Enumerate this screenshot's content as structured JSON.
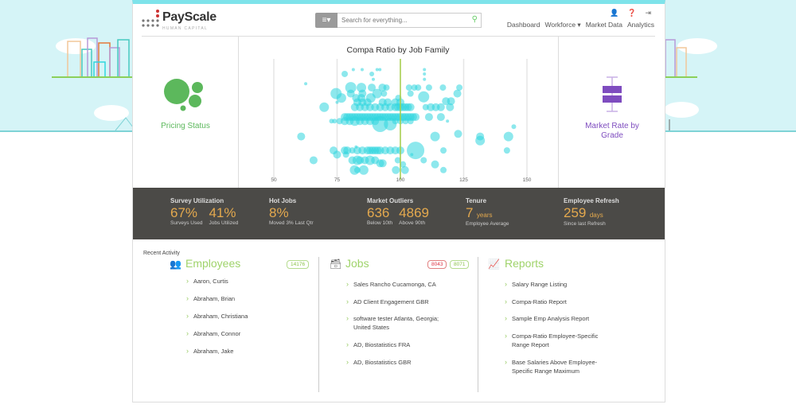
{
  "header": {
    "brand": "PayScale",
    "brand_sub": "HUMAN CAPITAL",
    "search_placeholder": "Search for everything...",
    "nav": [
      "Dashboard",
      "Workforce ▾",
      "Market Data",
      "Analytics"
    ]
  },
  "tiles": {
    "left": "Pricing Status",
    "right": "Market Rate by Grade"
  },
  "colors": {
    "bubble": "#2fd6de",
    "ref_line": "#a6d04a",
    "pricing": "#5cb85c",
    "market": "#7e4cbf"
  },
  "chart_data": {
    "type": "scatter",
    "title": "Compa Ratio by Job Family",
    "xlim": [
      50,
      150
    ],
    "xticks": [
      50,
      75,
      100,
      125,
      150
    ],
    "reference_x": 100,
    "ylim": [
      0,
      100
    ],
    "points": [
      [
        81.4,
        96,
        2
      ],
      [
        84.9,
        96,
        2
      ],
      [
        90.8,
        96,
        2
      ],
      [
        91.9,
        96,
        2
      ],
      [
        109.5,
        96,
        2
      ],
      [
        78,
        92,
        4
      ],
      [
        88.7,
        92,
        3
      ],
      [
        109.5,
        92,
        2
      ],
      [
        89.3,
        87,
        2
      ],
      [
        109.5,
        87,
        2
      ],
      [
        62.6,
        83,
        2
      ],
      [
        80.4,
        79.5,
        7
      ],
      [
        84.6,
        79.5,
        6
      ],
      [
        88.7,
        79.5,
        5
      ],
      [
        92.9,
        79.5,
        5
      ],
      [
        94.5,
        79.5,
        4
      ],
      [
        103.4,
        79.5,
        4
      ],
      [
        105.5,
        79.5,
        4
      ],
      [
        107,
        79.5,
        4
      ],
      [
        111.3,
        79.5,
        4
      ],
      [
        116.8,
        79.5,
        4
      ],
      [
        123.3,
        79.5,
        4
      ],
      [
        74.6,
        74,
        7
      ],
      [
        80.4,
        74,
        5
      ],
      [
        85,
        74,
        5
      ],
      [
        90.8,
        74,
        6
      ],
      [
        93.5,
        74,
        4
      ],
      [
        104,
        74,
        4
      ],
      [
        122.5,
        74,
        5
      ],
      [
        109.2,
        71,
        7
      ],
      [
        76.7,
        70,
        6
      ],
      [
        82.5,
        70,
        5
      ],
      [
        84.6,
        70,
        5
      ],
      [
        88.3,
        70,
        6
      ],
      [
        99.2,
        70,
        4
      ],
      [
        120,
        67,
        5
      ],
      [
        118,
        67,
        5
      ],
      [
        83,
        66,
        5
      ],
      [
        85,
        66,
        5
      ],
      [
        87,
        66,
        5
      ],
      [
        93,
        66,
        5
      ],
      [
        95,
        66,
        5
      ],
      [
        98,
        66,
        5
      ],
      [
        100,
        66,
        5
      ],
      [
        75,
        66,
        2
      ],
      [
        69.9,
        61.5,
        6
      ],
      [
        82,
        61.5,
        5
      ],
      [
        84,
        61.5,
        5
      ],
      [
        86,
        61.5,
        5
      ],
      [
        88,
        61.5,
        5
      ],
      [
        90,
        61.5,
        5
      ],
      [
        92,
        61.5,
        5
      ],
      [
        94,
        61.5,
        5
      ],
      [
        96,
        61.5,
        5
      ],
      [
        98,
        61.5,
        5
      ],
      [
        99,
        61.5,
        5
      ],
      [
        100,
        61.5,
        5
      ],
      [
        101,
        61.5,
        5
      ],
      [
        102,
        61.5,
        5
      ],
      [
        103,
        61.5,
        5
      ],
      [
        104,
        61.5,
        5
      ],
      [
        110,
        61.5,
        4
      ],
      [
        112,
        61.5,
        5
      ],
      [
        114,
        61.5,
        5
      ],
      [
        116,
        61.5,
        5
      ],
      [
        119.6,
        61.5,
        5
      ],
      [
        78,
        52.5,
        5
      ],
      [
        79,
        52.5,
        5
      ],
      [
        80,
        52.5,
        5
      ],
      [
        81,
        52.5,
        5
      ],
      [
        82,
        52.5,
        5
      ],
      [
        83,
        52.5,
        5
      ],
      [
        84,
        52.5,
        5
      ],
      [
        85,
        52.5,
        5
      ],
      [
        86,
        52.5,
        5
      ],
      [
        87,
        52.5,
        5
      ],
      [
        88,
        52.5,
        5
      ],
      [
        89,
        52.5,
        5
      ],
      [
        90,
        52.5,
        5
      ],
      [
        91,
        52.5,
        5
      ],
      [
        92,
        52.5,
        5
      ],
      [
        93,
        52.5,
        5
      ],
      [
        94,
        52.5,
        5
      ],
      [
        95,
        52.5,
        5
      ],
      [
        96,
        52.5,
        5
      ],
      [
        97,
        52.5,
        5
      ],
      [
        98,
        52.5,
        5
      ],
      [
        99,
        52.5,
        5
      ],
      [
        100,
        52.5,
        5
      ],
      [
        101,
        52.5,
        5
      ],
      [
        102,
        52.5,
        5
      ],
      [
        103,
        52.5,
        5
      ],
      [
        104,
        52.5,
        5
      ],
      [
        105,
        52.5,
        5
      ],
      [
        106,
        52.5,
        5
      ],
      [
        111.3,
        52.5,
        5
      ],
      [
        116,
        52.5,
        5
      ],
      [
        72.8,
        48.7,
        3
      ],
      [
        74,
        48.7,
        3
      ],
      [
        76,
        48.7,
        4
      ],
      [
        78,
        48.7,
        5
      ],
      [
        80,
        48.7,
        5
      ],
      [
        82,
        48.7,
        6
      ],
      [
        84,
        48.7,
        5
      ],
      [
        86,
        48.7,
        5
      ],
      [
        88,
        48.7,
        5
      ],
      [
        90,
        48.7,
        5
      ],
      [
        92,
        46,
        10
      ],
      [
        96,
        46,
        8
      ],
      [
        98,
        48.7,
        4
      ],
      [
        100,
        48.7,
        4
      ],
      [
        102,
        48.7,
        4
      ],
      [
        104,
        48.7,
        4
      ],
      [
        118.6,
        48.7,
        2
      ],
      [
        144.8,
        43.6,
        3
      ],
      [
        60.8,
        34.6,
        5
      ],
      [
        113.7,
        34.6,
        6
      ],
      [
        122.8,
        37,
        5
      ],
      [
        131.5,
        34.6,
        5
      ],
      [
        142.7,
        34.6,
        6
      ],
      [
        131.5,
        30.8,
        6
      ],
      [
        73.6,
        21.8,
        5
      ],
      [
        78,
        21.8,
        5
      ],
      [
        79,
        21.8,
        5
      ],
      [
        81,
        21.8,
        4
      ],
      [
        83,
        21.8,
        5
      ],
      [
        85,
        21.8,
        5
      ],
      [
        87,
        21.8,
        5
      ],
      [
        88,
        21.8,
        5
      ],
      [
        89,
        21.8,
        5
      ],
      [
        90,
        21.8,
        5
      ],
      [
        91,
        21.8,
        5
      ],
      [
        92,
        21.8,
        5
      ],
      [
        94,
        21.8,
        5
      ],
      [
        96,
        21.8,
        5
      ],
      [
        98,
        21.8,
        5
      ],
      [
        100,
        21.8,
        5
      ],
      [
        106,
        21.8,
        11
      ],
      [
        117,
        21.8,
        4
      ],
      [
        142.1,
        21.8,
        4
      ],
      [
        82.5,
        25,
        2
      ],
      [
        75,
        18,
        5
      ],
      [
        78.5,
        18,
        4
      ],
      [
        104.5,
        18,
        2
      ],
      [
        65.7,
        12.8,
        5
      ],
      [
        81,
        12.8,
        5
      ],
      [
        83,
        12.8,
        6
      ],
      [
        84,
        12.8,
        5
      ],
      [
        86,
        12.8,
        5
      ],
      [
        88,
        12.8,
        6
      ],
      [
        90,
        12.8,
        5
      ],
      [
        92,
        10,
        5
      ],
      [
        93,
        10,
        5
      ],
      [
        99,
        12.8,
        4
      ],
      [
        101,
        9,
        4
      ],
      [
        109.2,
        12.8,
        4
      ],
      [
        113.7,
        9,
        5
      ],
      [
        81.9,
        3.8,
        6
      ],
      [
        85.5,
        3.8,
        6
      ],
      [
        83,
        3.8,
        4
      ],
      [
        98.2,
        3.8,
        5
      ],
      [
        101.8,
        3.8,
        5
      ],
      [
        117,
        3.8,
        4
      ]
    ]
  },
  "stats": [
    {
      "label": "Survey Utilization",
      "values": [
        {
          "num": "67%",
          "sub": "Surveys Used"
        },
        {
          "num": "41%",
          "sub": "Jobs Utilized"
        }
      ]
    },
    {
      "label": "Hot Jobs",
      "values": [
        {
          "num": "8%",
          "sub": "Moved 3% Last Qtr"
        }
      ]
    },
    {
      "label": "Market Outliers",
      "values": [
        {
          "num": "636",
          "sub": "Below 10th"
        },
        {
          "num": "4869",
          "sub": "Above 90th"
        }
      ]
    },
    {
      "label": "Tenure",
      "values": [
        {
          "num": "7",
          "unit": "years",
          "sub": "Employee Average"
        }
      ]
    },
    {
      "label": "Employee Refresh",
      "values": [
        {
          "num": "259",
          "unit": "days",
          "sub": "Since last Refresh"
        }
      ]
    }
  ],
  "recent": {
    "title": "Recent Activity",
    "employees": {
      "title": "Employees",
      "count": "14176",
      "items": [
        "Aaron, Curtis",
        "Abraham, Brian",
        "Abraham, Christiana",
        "Abraham, Connor",
        "Abraham, Jake"
      ]
    },
    "jobs": {
      "title": "Jobs",
      "count_red": "8043",
      "count_green": "8071",
      "items": [
        "Sales Rancho Cucamonga, CA",
        "AD Client Engagement GBR",
        "software tester Atlanta, Georgia; United States",
        "AD, Biostatistics FRA",
        "AD, Biostatistics GBR"
      ]
    },
    "reports": {
      "title": "Reports",
      "items": [
        "Salary Range Listing",
        "Compa-Ratio Report",
        "Sample Emp Analysis Report",
        "Compa-Ratio Employee-Specific Range Report",
        "Base Salaries Above Employee-Specific Range Maximum"
      ]
    }
  }
}
